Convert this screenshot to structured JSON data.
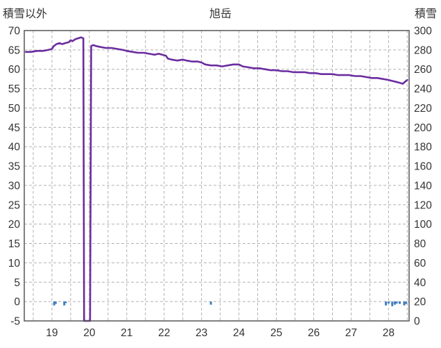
{
  "header": {
    "left_axis_label": "積雪以外",
    "title": "旭岳",
    "right_axis_label": "積雪"
  },
  "colors": {
    "snow_line": "#6a2ca0",
    "bar": "#3f7fbf",
    "grid": "#b0b0b0",
    "border": "#555555",
    "text": "#333333",
    "background": "#ffffff"
  },
  "chart_data": {
    "type": "line",
    "title": "旭岳",
    "left_axis": {
      "label": "積雪以外",
      "min": -5,
      "max": 70,
      "step": 5,
      "ticks": [
        70,
        65,
        60,
        55,
        50,
        45,
        40,
        35,
        30,
        25,
        20,
        15,
        10,
        5,
        0,
        -5
      ]
    },
    "right_axis": {
      "label": "積雪",
      "min": 0,
      "max": 300,
      "step": 20,
      "ticks": [
        300,
        280,
        260,
        240,
        220,
        200,
        180,
        160,
        140,
        120,
        100,
        80,
        60,
        40,
        20,
        0
      ]
    },
    "x_axis": {
      "min": 18.26,
      "max": 28.55,
      "ticks": [
        19,
        20,
        21,
        22,
        23,
        24,
        25,
        26,
        27,
        28
      ],
      "grid_interval": 0.5
    },
    "grid": {
      "dashed": true
    },
    "legend": "none",
    "series": [
      {
        "name": "積雪",
        "type": "line",
        "axis": "right",
        "color": "#6a2ca0",
        "points": [
          [
            18.3,
            278
          ],
          [
            18.45,
            278
          ],
          [
            18.6,
            279
          ],
          [
            18.75,
            279
          ],
          [
            18.9,
            280
          ],
          [
            19.0,
            281
          ],
          [
            19.05,
            284
          ],
          [
            19.12,
            286
          ],
          [
            19.2,
            287
          ],
          [
            19.28,
            286
          ],
          [
            19.35,
            287
          ],
          [
            19.45,
            288
          ],
          [
            19.5,
            290
          ],
          [
            19.55,
            289
          ],
          [
            19.62,
            291
          ],
          [
            19.7,
            292
          ],
          [
            19.78,
            293
          ],
          [
            19.84,
            292
          ],
          [
            19.86,
            0
          ],
          [
            20.02,
            0
          ],
          [
            20.05,
            284
          ],
          [
            20.1,
            285
          ],
          [
            20.18,
            284
          ],
          [
            20.3,
            283
          ],
          [
            20.45,
            282
          ],
          [
            20.6,
            282
          ],
          [
            20.75,
            281
          ],
          [
            20.9,
            280
          ],
          [
            21.0,
            279
          ],
          [
            21.15,
            278
          ],
          [
            21.3,
            277
          ],
          [
            21.45,
            277
          ],
          [
            21.6,
            276
          ],
          [
            21.75,
            275
          ],
          [
            21.85,
            276
          ],
          [
            21.95,
            275
          ],
          [
            22.05,
            274
          ],
          [
            22.1,
            271
          ],
          [
            22.2,
            270
          ],
          [
            22.35,
            269
          ],
          [
            22.5,
            270
          ],
          [
            22.6,
            269
          ],
          [
            22.75,
            268
          ],
          [
            22.9,
            268
          ],
          [
            23.0,
            267
          ],
          [
            23.1,
            265
          ],
          [
            23.25,
            264
          ],
          [
            23.4,
            264
          ],
          [
            23.55,
            263
          ],
          [
            23.7,
            264
          ],
          [
            23.85,
            265
          ],
          [
            24.0,
            265
          ],
          [
            24.1,
            263
          ],
          [
            24.25,
            262
          ],
          [
            24.4,
            261
          ],
          [
            24.55,
            261
          ],
          [
            24.7,
            260
          ],
          [
            24.85,
            259
          ],
          [
            25.0,
            259
          ],
          [
            25.15,
            258
          ],
          [
            25.3,
            258
          ],
          [
            25.45,
            257
          ],
          [
            25.6,
            257
          ],
          [
            25.75,
            257
          ],
          [
            25.9,
            256
          ],
          [
            26.05,
            256
          ],
          [
            26.2,
            255
          ],
          [
            26.35,
            255
          ],
          [
            26.5,
            255
          ],
          [
            26.65,
            254
          ],
          [
            26.8,
            254
          ],
          [
            26.95,
            254
          ],
          [
            27.1,
            253
          ],
          [
            27.25,
            253
          ],
          [
            27.4,
            252
          ],
          [
            27.55,
            251
          ],
          [
            27.7,
            251
          ],
          [
            27.85,
            250
          ],
          [
            28.0,
            249
          ],
          [
            28.1,
            248
          ],
          [
            28.2,
            247
          ],
          [
            28.3,
            246
          ],
          [
            28.38,
            245
          ],
          [
            28.44,
            247
          ],
          [
            28.5,
            249
          ]
        ]
      },
      {
        "name": "積雪以外",
        "type": "bar",
        "axis": "left",
        "color": "#3f7fbf",
        "points": [
          [
            19.06,
            -1.0
          ],
          [
            19.1,
            -0.6
          ],
          [
            19.33,
            -1.0
          ],
          [
            19.37,
            -0.4
          ],
          [
            23.25,
            -0.8
          ],
          [
            27.93,
            -1.0
          ],
          [
            28.0,
            -0.5
          ],
          [
            28.1,
            -1.2
          ],
          [
            28.17,
            -0.8
          ],
          [
            28.22,
            -0.5
          ],
          [
            28.3,
            -0.6
          ],
          [
            28.42,
            -1.0
          ],
          [
            28.47,
            -0.6
          ]
        ]
      }
    ]
  }
}
